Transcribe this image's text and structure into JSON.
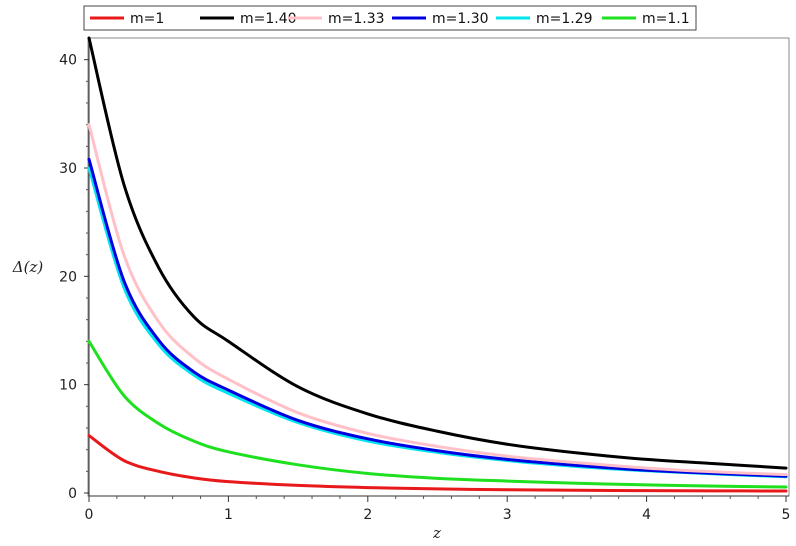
{
  "chart_data": {
    "type": "line",
    "title": "",
    "xlabel": "z",
    "ylabel": "Δ(z)",
    "xlim": [
      0,
      5
    ],
    "ylim": [
      0,
      42
    ],
    "xticks": [
      "0",
      "1",
      "2",
      "3",
      "4",
      "5"
    ],
    "yticks": [
      "0",
      "10",
      "20",
      "30",
      "40"
    ],
    "grid": false,
    "legend_position": "top",
    "x": [
      0,
      0.25,
      0.5,
      0.75,
      1,
      1.5,
      2,
      2.5,
      3,
      3.5,
      4,
      4.5,
      5
    ],
    "series": [
      {
        "name": "m=1",
        "color": "#e8191a",
        "values": [
          5.3,
          3.0,
          2.0,
          1.4,
          1.05,
          0.7,
          0.5,
          0.38,
          0.3,
          0.25,
          0.22,
          0.2,
          0.18
        ]
      },
      {
        "name": "m=1.40",
        "color": "#000000",
        "values": [
          42.0,
          28.5,
          20.8,
          16.3,
          14.0,
          9.8,
          7.3,
          5.7,
          4.5,
          3.7,
          3.1,
          2.7,
          2.3
        ]
      },
      {
        "name": "m=1.33",
        "color": "#ffc0c8",
        "values": [
          34.0,
          22.0,
          15.8,
          12.5,
          10.5,
          7.4,
          5.5,
          4.3,
          3.4,
          2.8,
          2.3,
          1.95,
          1.7
        ]
      },
      {
        "name": "m=1.30",
        "color": "#0000e0",
        "values": [
          30.8,
          19.6,
          14.1,
          11.2,
          9.5,
          6.7,
          5.0,
          3.9,
          3.1,
          2.55,
          2.1,
          1.8,
          1.55
        ]
      },
      {
        "name": "m=1.29",
        "color": "#00e5ee",
        "values": [
          30.0,
          19.0,
          13.7,
          10.9,
          9.2,
          6.5,
          4.8,
          3.75,
          3.0,
          2.45,
          2.05,
          1.75,
          1.5
        ]
      },
      {
        "name": "m=1.1",
        "color": "#1ee01e",
        "values": [
          14.0,
          9.0,
          6.4,
          4.8,
          3.8,
          2.6,
          1.8,
          1.35,
          1.1,
          0.9,
          0.75,
          0.63,
          0.55
        ]
      }
    ]
  }
}
